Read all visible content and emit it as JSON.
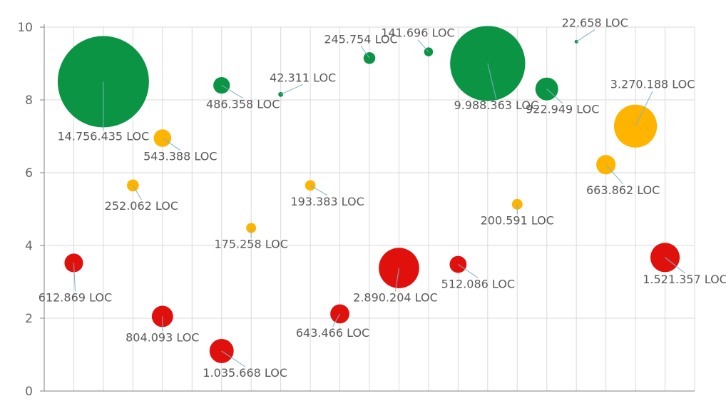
{
  "chart_data": {
    "type": "scatter",
    "variant": "bubble",
    "title": "",
    "xlabel": "",
    "ylabel": "",
    "ylim": [
      0,
      10
    ],
    "y_ticks": [
      0,
      2,
      4,
      6,
      8,
      10
    ],
    "x_category_count": 22,
    "grid": true,
    "legend": "none",
    "colors": {
      "green": "#0b9444",
      "amber": "#ffb400",
      "red": "#e0110d",
      "leader": "#7fb0c8",
      "grid": "#d9d9d9",
      "axis": "#808080"
    },
    "points": [
      {
        "x": 2,
        "y": 8.5,
        "size": 14756435,
        "color": "green",
        "label": "14.756.435 LOC"
      },
      {
        "x": 3,
        "y": 5.65,
        "size": 252062,
        "color": "amber",
        "label": "252.062 LOC"
      },
      {
        "x": 4,
        "y": 6.95,
        "size": 543388,
        "color": "amber",
        "label": "543.388 LOC"
      },
      {
        "x": 6,
        "y": 8.4,
        "size": 486358,
        "color": "green",
        "label": "486.358 LOC"
      },
      {
        "x": 7,
        "y": 4.48,
        "size": 175258,
        "color": "amber",
        "label": "175.258 LOC"
      },
      {
        "x": 8,
        "y": 8.15,
        "size": 42311,
        "color": "green",
        "label": "42.311 LOC"
      },
      {
        "x": 9,
        "y": 5.65,
        "size": 193383,
        "color": "amber",
        "label": "193.383 LOC"
      },
      {
        "x": 11,
        "y": 9.15,
        "size": 245754,
        "color": "green",
        "label": "245.754 LOC"
      },
      {
        "x": 13,
        "y": 9.32,
        "size": 141696,
        "color": "green",
        "label": "141.696 LOC"
      },
      {
        "x": 15,
        "y": 9.0,
        "size": 9988363,
        "color": "green",
        "label": "9.988.363 LOC"
      },
      {
        "x": 16,
        "y": 5.13,
        "size": 200591,
        "color": "amber",
        "label": "200.591 LOC"
      },
      {
        "x": 17,
        "y": 8.3,
        "size": 922949,
        "color": "green",
        "label": "922.949 LOC"
      },
      {
        "x": 18,
        "y": 9.6,
        "size": 22658,
        "color": "green",
        "label": "22.658 LOC"
      },
      {
        "x": 19,
        "y": 6.22,
        "size": 663862,
        "color": "amber",
        "label": "663.862 LOC"
      },
      {
        "x": 20,
        "y": 7.28,
        "size": 3270188,
        "color": "amber",
        "label": "3.270.188 LOC"
      },
      {
        "x": 1,
        "y": 3.52,
        "size": 612869,
        "color": "red",
        "label": "612.869 LOC"
      },
      {
        "x": 4,
        "y": 2.05,
        "size": 804093,
        "color": "red",
        "label": "804.093 LOC"
      },
      {
        "x": 6,
        "y": 1.1,
        "size": 1035668,
        "color": "red",
        "label": "1.035.668 LOC"
      },
      {
        "x": 10,
        "y": 2.12,
        "size": 643466,
        "color": "red",
        "label": "643.466 LOC"
      },
      {
        "x": 12,
        "y": 3.38,
        "size": 2890204,
        "color": "red",
        "label": "2.890.204 LOC"
      },
      {
        "x": 14,
        "y": 3.48,
        "size": 512086,
        "color": "red",
        "label": "512.086 LOC"
      },
      {
        "x": 21,
        "y": 3.67,
        "size": 1521357,
        "color": "red",
        "label": "1.521.357 LOC"
      }
    ]
  }
}
